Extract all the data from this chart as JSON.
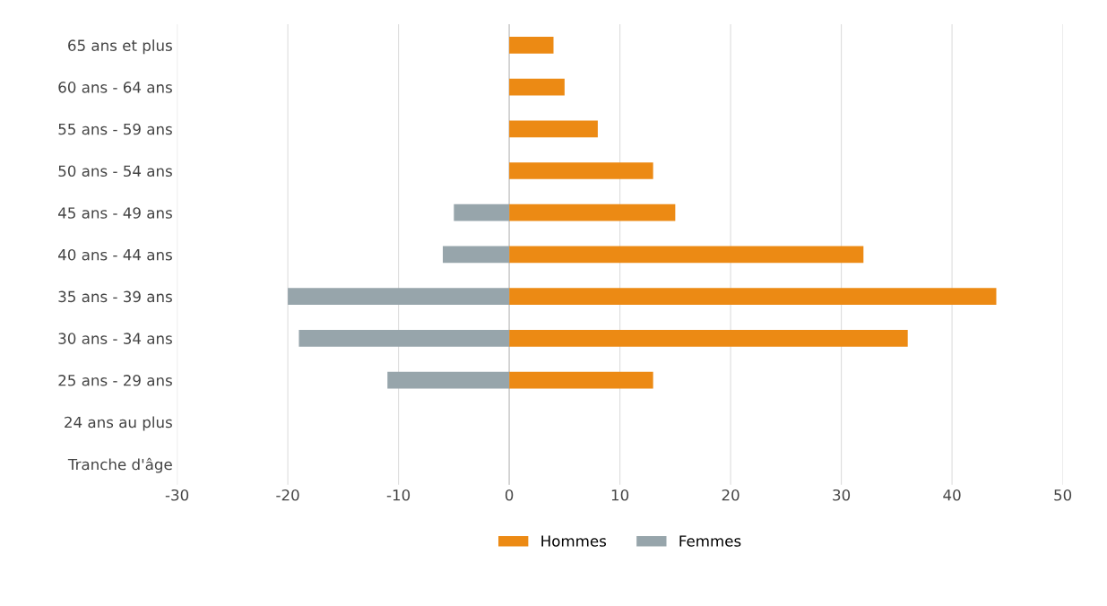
{
  "chart_data": {
    "type": "bar",
    "orientation": "horizontal",
    "categories": [
      "65 ans et plus",
      "60 ans - 64 ans",
      "55 ans - 59 ans",
      "50 ans - 54 ans",
      "45 ans - 49 ans",
      "40 ans - 44 ans",
      "35 ans - 39 ans",
      "30 ans - 34 ans",
      "25 ans - 29 ans",
      "24 ans au plus",
      "Tranche d'âge"
    ],
    "series": [
      {
        "name": "Hommes",
        "color": "#ec8a14",
        "values": [
          4,
          5,
          8,
          13,
          15,
          32,
          44,
          36,
          13,
          null,
          null
        ]
      },
      {
        "name": "Femmes",
        "color": "#97a5ab",
        "values": [
          null,
          null,
          null,
          null,
          -5,
          -6,
          -20,
          -19,
          -11,
          null,
          null
        ]
      }
    ],
    "xlim": [
      -30,
      50
    ],
    "xticks": [
      -30,
      -20,
      -10,
      0,
      10,
      20,
      30,
      40,
      50
    ],
    "grid": "x",
    "legend": "bottom"
  }
}
